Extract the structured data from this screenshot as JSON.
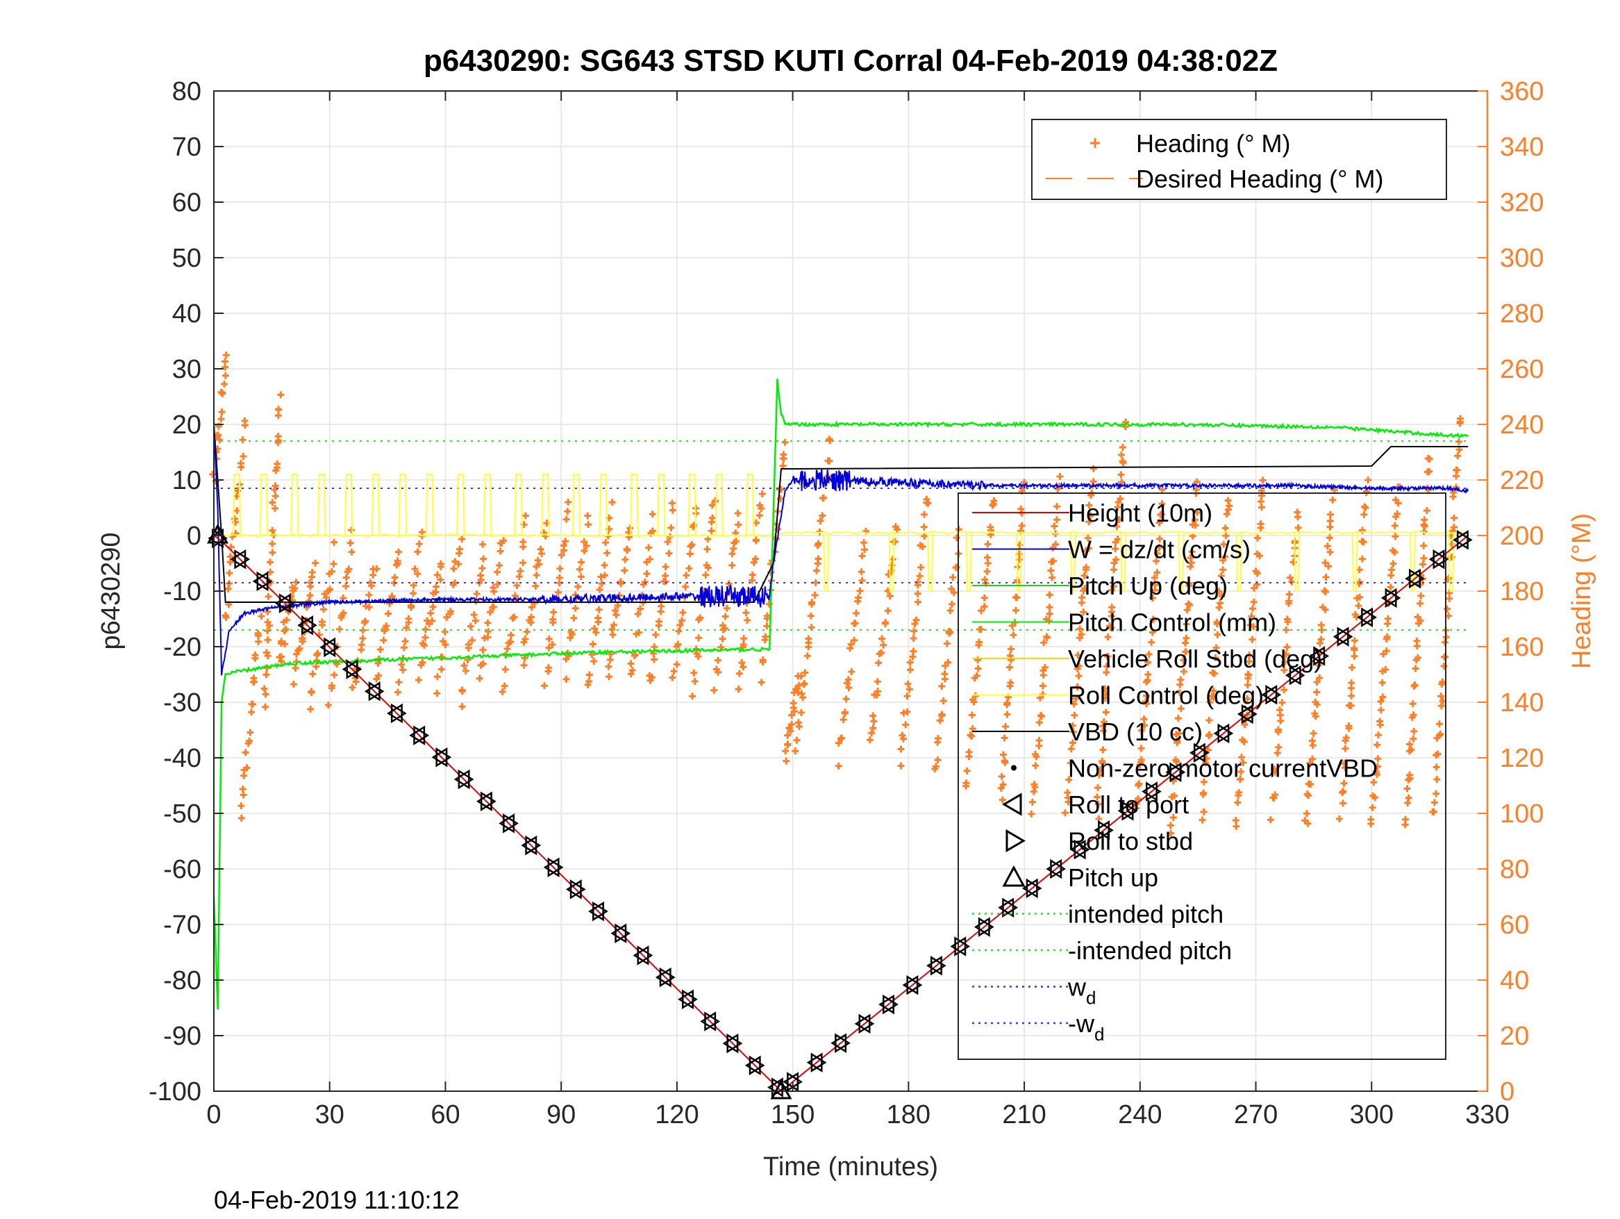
{
  "chart_data": {
    "type": "line",
    "title": "p6430290: SG643 STSD KUTI Corral 04-Feb-2019 04:38:02Z",
    "xlabel": "Time (minutes)",
    "ylabel_left": "p6430290",
    "ylabel_right": "Heading (°M)",
    "footer_timestamp": "04-Feb-2019 11:10:12",
    "xlim": [
      0,
      330
    ],
    "ylim_left": [
      -100,
      80
    ],
    "ylim_right": [
      0,
      360
    ],
    "x_ticks": [
      0,
      30,
      60,
      90,
      120,
      150,
      180,
      210,
      240,
      270,
      300,
      330
    ],
    "y_ticks_left": [
      80,
      70,
      60,
      50,
      40,
      30,
      20,
      10,
      0,
      -10,
      -20,
      -30,
      -40,
      -50,
      -60,
      -70,
      -80,
      -90,
      -100
    ],
    "y_ticks_right": [
      360,
      340,
      320,
      300,
      280,
      260,
      240,
      220,
      200,
      180,
      160,
      140,
      120,
      100,
      80,
      60,
      40,
      20,
      0
    ],
    "grid": true,
    "colors": {
      "heading": "#ff7f27",
      "height": "#e00000",
      "w": "#0000dd",
      "pitch_up": "#22cc22",
      "pitch_control": "#00ee00",
      "roll": "#ffd700",
      "roll_control": "#ffff33",
      "vbd": "#000000",
      "right_axis": "#ff7f27"
    },
    "legend_top": {
      "placement": "top-right",
      "entries": [
        {
          "label": "Heading (° M)",
          "marker": "plus",
          "color": "#ff7f27"
        },
        {
          "label": "Desired Heading (° M)",
          "marker": "dash",
          "color": "#ff7f27"
        }
      ]
    },
    "legend_main": {
      "placement": "right",
      "entries": [
        {
          "label": "Height (10m)",
          "marker": "line",
          "color": "#e00000"
        },
        {
          "label": "W = dz/dt (cm/s)",
          "marker": "line",
          "color": "#0000dd"
        },
        {
          "label": "Pitch Up (deg)",
          "marker": "line",
          "color": "#22cc22"
        },
        {
          "label": "Pitch Control (mm)",
          "marker": "line",
          "color": "#00ee00"
        },
        {
          "label": "Vehicle Roll Stbd (deg)",
          "marker": "line",
          "color": "#ffd700"
        },
        {
          "label": "Roll Control (deg)",
          "marker": "line",
          "color": "#ffff33"
        },
        {
          "label": "VBD (10 cc)",
          "marker": "line",
          "color": "#000000"
        },
        {
          "label": "Non-zero motor currentVBD",
          "marker": "dot",
          "color": "#000000"
        },
        {
          "label": "Roll to port",
          "marker": "tri-left",
          "color": "#000000"
        },
        {
          "label": "Roll to stbd",
          "marker": "tri-right",
          "color": "#000000"
        },
        {
          "label": "Pitch up",
          "marker": "tri-up",
          "color": "#000000"
        },
        {
          "label": "intended pitch",
          "marker": "dotted",
          "color": "#33dd33"
        },
        {
          "label": "-intended pitch",
          "marker": "dotted",
          "color": "#33dd33"
        },
        {
          "label": "w_d",
          "marker": "dotted",
          "color": "#3333ff"
        },
        {
          "label": "-w_d",
          "marker": "dotted",
          "color": "#3333ff"
        }
      ]
    },
    "series": [
      {
        "name": "Height (10m)",
        "axis": "left",
        "x": [
          0,
          2,
          147,
          325
        ],
        "y": [
          0,
          -1,
          -100,
          0
        ]
      },
      {
        "name": "W = dz/dt (cm/s)",
        "axis": "left",
        "x": [
          0,
          1,
          2,
          4,
          8,
          15,
          30,
          60,
          90,
          120,
          144,
          145,
          148,
          150,
          160,
          180,
          200,
          240,
          280,
          300,
          320,
          325
        ],
        "y": [
          20,
          5,
          -25,
          -17,
          -14,
          -13,
          -12,
          -11.5,
          -11.5,
          -11,
          -11,
          -5,
          8,
          10,
          10,
          9.5,
          9,
          9,
          9,
          8.5,
          8.5,
          8
        ]
      },
      {
        "name": "Pitch Control (mm)",
        "axis": "left",
        "x": [
          0,
          1,
          2,
          3,
          6,
          20,
          60,
          100,
          140,
          144,
          146,
          147,
          148,
          150,
          200,
          250,
          290,
          300,
          320,
          325
        ],
        "y": [
          -65,
          -85,
          -30,
          -25,
          -24.5,
          -23,
          -22,
          -21,
          -20.5,
          -20.5,
          28,
          22,
          20,
          20,
          20,
          20,
          19.5,
          19,
          18,
          18
        ]
      },
      {
        "name": "VBD (10 cc)",
        "axis": "left",
        "x": [
          0,
          2,
          3,
          140,
          145,
          147,
          150,
          300,
          305,
          325
        ],
        "y": [
          20,
          0,
          -12,
          -12,
          -5,
          12,
          12,
          12.5,
          16,
          16
        ]
      },
      {
        "name": "intended pitch",
        "axis": "left",
        "x": [
          0,
          325
        ],
        "y": [
          17,
          17
        ]
      },
      {
        "name": "-intended pitch",
        "axis": "left",
        "x": [
          0,
          325
        ],
        "y": [
          -17,
          -17
        ]
      },
      {
        "name": "w_d",
        "axis": "left",
        "x": [
          0,
          325
        ],
        "y": [
          8.5,
          8.5
        ]
      },
      {
        "name": "-w_d",
        "axis": "left",
        "x": [
          0,
          325
        ],
        "y": [
          -8.5,
          -8.5
        ]
      },
      {
        "name": "Roll Control (deg)",
        "axis": "left",
        "x": [
          0,
          145,
          150,
          325
        ],
        "y": [
          0,
          0,
          0.5,
          0.5
        ],
        "spike_x": [
          5,
          12,
          20,
          27,
          34,
          41,
          48,
          55,
          63,
          70,
          78,
          85,
          93,
          100,
          108,
          115,
          123,
          130,
          138
        ],
        "spike_y": 11,
        "dip_x": [
          158,
          175,
          185,
          195,
          208,
          222,
          235,
          250,
          265,
          280,
          295,
          310,
          320
        ],
        "dip_y": -10
      }
    ],
    "heading_segments": [
      {
        "t0": 0,
        "t1": 3,
        "h0": 220,
        "h1": 265
      },
      {
        "t0": 3,
        "t1": 8,
        "h0": 170,
        "h1": 240
      },
      {
        "t0": 7,
        "t1": 12,
        "h0": 100,
        "h1": 170
      },
      {
        "t0": 13,
        "t1": 17,
        "h0": 140,
        "h1": 250
      },
      {
        "t0": 17,
        "t1": 21,
        "h0": 155,
        "h1": 185
      },
      {
        "t0": 21,
        "t1": 26,
        "h0": 148,
        "h1": 190
      },
      {
        "t0": 25,
        "t1": 31,
        "h0": 140,
        "h1": 195
      },
      {
        "t0": 30,
        "t1": 36,
        "h0": 140,
        "h1": 200
      },
      {
        "t0": 36,
        "t1": 42,
        "h0": 144,
        "h1": 190
      },
      {
        "t0": 42,
        "t1": 48,
        "h0": 150,
        "h1": 195
      },
      {
        "t0": 48,
        "t1": 54,
        "h0": 145,
        "h1": 200
      },
      {
        "t0": 53,
        "t1": 59,
        "h0": 150,
        "h1": 190
      },
      {
        "t0": 58,
        "t1": 64,
        "h0": 145,
        "h1": 200
      },
      {
        "t0": 64,
        "t1": 70,
        "h0": 140,
        "h1": 195
      },
      {
        "t0": 69,
        "t1": 75,
        "h0": 150,
        "h1": 200
      },
      {
        "t0": 75,
        "t1": 81,
        "h0": 145,
        "h1": 205
      },
      {
        "t0": 80,
        "t1": 86,
        "h0": 155,
        "h1": 205
      },
      {
        "t0": 86,
        "t1": 92,
        "h0": 148,
        "h1": 210
      },
      {
        "t0": 91,
        "t1": 97,
        "h0": 150,
        "h1": 205
      },
      {
        "t0": 97,
        "t1": 103,
        "h0": 145,
        "h1": 210
      },
      {
        "t0": 102,
        "t1": 108,
        "h0": 150,
        "h1": 205
      },
      {
        "t0": 108,
        "t1": 114,
        "h0": 148,
        "h1": 205
      },
      {
        "t0": 113,
        "t1": 119,
        "h0": 145,
        "h1": 210
      },
      {
        "t0": 119,
        "t1": 125,
        "h0": 150,
        "h1": 210
      },
      {
        "t0": 124,
        "t1": 130,
        "h0": 145,
        "h1": 215
      },
      {
        "t0": 130,
        "t1": 136,
        "h0": 145,
        "h1": 210
      },
      {
        "t0": 136,
        "t1": 142,
        "h0": 145,
        "h1": 215
      },
      {
        "t0": 142,
        "t1": 148,
        "h0": 150,
        "h1": 235
      },
      {
        "t0": 148,
        "t1": 152,
        "h0": 120,
        "h1": 150
      },
      {
        "t0": 151,
        "t1": 160,
        "h0": 125,
        "h1": 235
      },
      {
        "t0": 162,
        "t1": 169,
        "h0": 120,
        "h1": 200
      },
      {
        "t0": 170,
        "t1": 177,
        "h0": 125,
        "h1": 205
      },
      {
        "t0": 178,
        "t1": 185,
        "h0": 120,
        "h1": 215
      },
      {
        "t0": 187,
        "t1": 193,
        "h0": 115,
        "h1": 200
      },
      {
        "t0": 195,
        "t1": 202,
        "h0": 110,
        "h1": 215
      },
      {
        "t0": 204,
        "t1": 210,
        "h0": 105,
        "h1": 220
      },
      {
        "t0": 212,
        "t1": 219,
        "h0": 100,
        "h1": 220
      },
      {
        "t0": 221,
        "t1": 228,
        "h0": 100,
        "h1": 225
      },
      {
        "t0": 229,
        "t1": 236,
        "h0": 100,
        "h1": 240
      },
      {
        "t0": 239,
        "t1": 246,
        "h0": 100,
        "h1": 215
      },
      {
        "t0": 248,
        "t1": 255,
        "h0": 95,
        "h1": 220
      },
      {
        "t0": 256,
        "t1": 263,
        "h0": 100,
        "h1": 215
      },
      {
        "t0": 265,
        "t1": 272,
        "h0": 95,
        "h1": 220
      },
      {
        "t0": 274,
        "t1": 281,
        "h0": 100,
        "h1": 210
      },
      {
        "t0": 283,
        "t1": 290,
        "h0": 95,
        "h1": 215
      },
      {
        "t0": 292,
        "t1": 299,
        "h0": 100,
        "h1": 220
      },
      {
        "t0": 300,
        "t1": 307,
        "h0": 95,
        "h1": 220
      },
      {
        "t0": 309,
        "t1": 315,
        "h0": 95,
        "h1": 230
      },
      {
        "t0": 316,
        "t1": 323,
        "h0": 100,
        "h1": 245
      }
    ]
  }
}
